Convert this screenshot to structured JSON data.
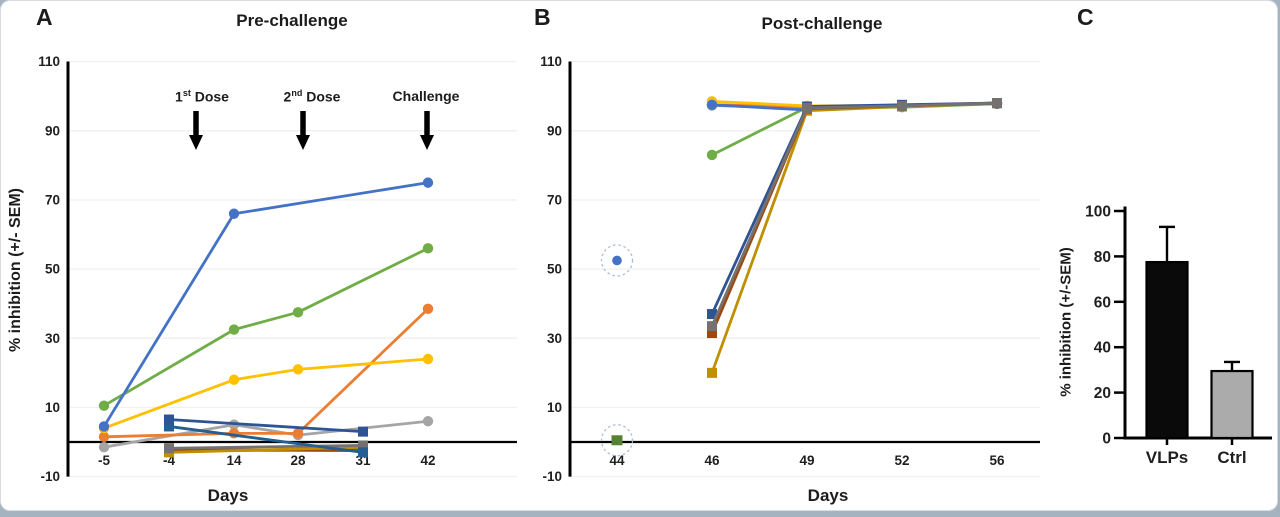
{
  "figure": {
    "panel_a_letter": "A",
    "panel_b_letter": "B",
    "panel_c_letter": "C"
  },
  "panel_a": {
    "title": "Pre-challenge",
    "xlabel": "Days",
    "ylabel": "% inhibition (+/- SEM)",
    "annotations": [
      {
        "num": "1",
        "sup": "st",
        "word": " Dose"
      },
      {
        "num": "2",
        "sup": "nd",
        "word": " Dose"
      },
      {
        "num": "",
        "sup": "",
        "word": "Challenge"
      }
    ]
  },
  "panel_b": {
    "title": "Post-challenge",
    "xlabel": "Days"
  },
  "panel_c": {
    "ylabel": "% inhibition (+/-SEM)",
    "categories": [
      "VLPs",
      "Ctrl"
    ]
  },
  "chart_data": [
    {
      "type": "line",
      "panel": "A",
      "title": "Pre-challenge",
      "xlabel": "Days",
      "ylabel": "% inhibition (+/- SEM)",
      "x_categories": [
        "-5",
        "-4",
        "14",
        "28",
        "31",
        "42"
      ],
      "y_ticks": [
        110,
        90,
        70,
        50,
        30,
        10,
        -10
      ],
      "ylim": [
        -10,
        110
      ],
      "grid": "horizontal-light",
      "legend": "none",
      "annotations": [
        "1st Dose",
        "2nd Dose",
        "Challenge"
      ],
      "series": [
        {
          "name": "vlp-gray",
          "group": "VLPs",
          "marker": "circle",
          "color": "#A5A5A5",
          "values": [
            -1.5,
            null,
            5,
            2,
            null,
            6
          ]
        },
        {
          "name": "vlp-orange",
          "group": "VLPs",
          "marker": "circle",
          "color": "#ED7D31",
          "values": [
            1.5,
            null,
            2.5,
            2.5,
            null,
            38.5
          ]
        },
        {
          "name": "vlp-yellow",
          "group": "VLPs",
          "marker": "circle",
          "color": "#FFC000",
          "values": [
            4,
            null,
            18,
            21,
            null,
            24
          ]
        },
        {
          "name": "vlp-green",
          "group": "VLPs",
          "marker": "circle",
          "color": "#70AD47",
          "values": [
            10.5,
            null,
            32.5,
            37.5,
            null,
            56
          ]
        },
        {
          "name": "vlp-blue",
          "group": "VLPs",
          "marker": "circle",
          "color": "#4472C4",
          "values": [
            4.5,
            null,
            66,
            null,
            null,
            75
          ]
        },
        {
          "name": "ctrl-green",
          "group": "Ctrl",
          "marker": "square",
          "color": "#548235",
          "values": [
            null,
            -2.6,
            null,
            null,
            -2.2,
            null
          ]
        },
        {
          "name": "ctrl-brown",
          "group": "Ctrl",
          "marker": "square",
          "color": "#9E480E",
          "values": [
            null,
            -2.2,
            null,
            null,
            -2.5,
            null
          ]
        },
        {
          "name": "ctrl-gold",
          "group": "Ctrl",
          "marker": "square",
          "color": "#BF8F00",
          "values": [
            null,
            -3,
            null,
            null,
            -1.5,
            null
          ]
        },
        {
          "name": "ctrl-gray",
          "group": "Ctrl",
          "marker": "square",
          "color": "#767171",
          "values": [
            null,
            -1.8,
            null,
            null,
            -1,
            null
          ]
        },
        {
          "name": "ctrl-steel",
          "group": "Ctrl",
          "marker": "square",
          "color": "#255E91",
          "values": [
            null,
            4.5,
            null,
            null,
            -3,
            null
          ]
        },
        {
          "name": "ctrl-navy",
          "group": "Ctrl",
          "marker": "square",
          "color": "#2F5496",
          "values": [
            null,
            6.5,
            null,
            null,
            3,
            null
          ]
        }
      ]
    },
    {
      "type": "line",
      "panel": "B",
      "title": "Post-challenge",
      "xlabel": "Days",
      "x_categories": [
        "44",
        "46",
        "49",
        "52",
        "56"
      ],
      "y_ticks": [
        110,
        90,
        70,
        50,
        30,
        10,
        -10
      ],
      "ylim": [
        -10,
        110
      ],
      "grid": "horizontal-light",
      "legend": "none",
      "series": [
        {
          "name": "vlp-gray",
          "group": "VLPs",
          "marker": "circle",
          "color": "#A5A5A5",
          "values": [
            null,
            97.3,
            96.5,
            97.1,
            97.8
          ]
        },
        {
          "name": "vlp-orange",
          "group": "VLPs",
          "marker": "circle",
          "color": "#ED7D31",
          "values": [
            null,
            97.5,
            97,
            97.3,
            97.8
          ]
        },
        {
          "name": "vlp-green",
          "group": "VLPs",
          "marker": "circle",
          "color": "#70AD47",
          "values": [
            null,
            83,
            96.8,
            96.8,
            97.8
          ]
        },
        {
          "name": "vlp-yellow",
          "group": "VLPs",
          "marker": "circle",
          "color": "#FFC000",
          "values": [
            null,
            98.5,
            97.2,
            97.3,
            97.8
          ]
        },
        {
          "name": "vlp-blue",
          "group": "VLPs",
          "marker": "circle",
          "color": "#4472C4",
          "values": [
            null,
            97.5,
            96,
            97.3,
            97.8
          ]
        },
        {
          "name": "ctrl-green",
          "group": "Ctrl",
          "marker": "square",
          "color": "#548235",
          "values": [
            null,
            null,
            96.8,
            97.3,
            98
          ]
        },
        {
          "name": "ctrl-gold",
          "group": "Ctrl",
          "marker": "square",
          "color": "#BF8F00",
          "values": [
            null,
            20,
            95.8,
            97,
            98
          ]
        },
        {
          "name": "ctrl-brown",
          "group": "Ctrl",
          "marker": "square",
          "color": "#9E480E",
          "values": [
            null,
            31.5,
            96.4,
            97.2,
            98
          ]
        },
        {
          "name": "ctrl-navy",
          "group": "Ctrl",
          "marker": "square",
          "color": "#2F5496",
          "values": [
            null,
            37,
            97,
            97.5,
            98
          ]
        },
        {
          "name": "ctrl-gray",
          "group": "Ctrl",
          "marker": "square",
          "color": "#767171",
          "values": [
            null,
            33.5,
            96.6,
            97.2,
            98
          ]
        }
      ],
      "outliers": [
        {
          "series": "vlp-blue",
          "x_category": "44",
          "y": 52.5,
          "marker": "circle",
          "color": "#4472C4",
          "circled": true
        },
        {
          "series": "ctrl-green",
          "x_category": "44",
          "y": 0.5,
          "marker": "square",
          "color": "#548235",
          "circled": true
        }
      ]
    },
    {
      "type": "bar",
      "panel": "C",
      "categories": [
        "VLPs",
        "Ctrl"
      ],
      "values": [
        77.5,
        29.5
      ],
      "errors_up": [
        15.5,
        4
      ],
      "bar_colors": [
        "#0a0a0a",
        "#ABABAB"
      ],
      "ylabel": "% inhibition (+/-SEM)",
      "y_ticks": [
        0,
        20,
        40,
        60,
        80,
        100
      ],
      "ylim": [
        0,
        100
      ],
      "grid": "off",
      "legend": "none"
    }
  ]
}
